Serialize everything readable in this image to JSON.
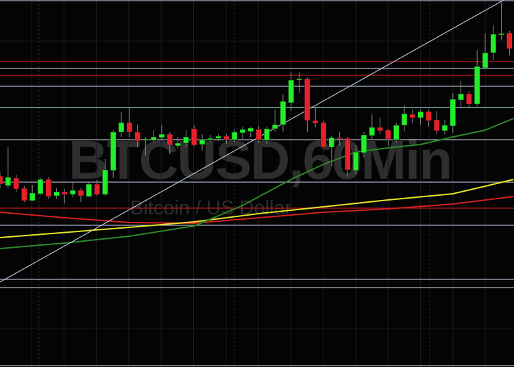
{
  "watermark": {
    "symbol": "BTCUSD,60Min",
    "name": "Bitcoin / US Dollar"
  },
  "colors": {
    "background": "#040404",
    "up": "#22ee2a",
    "down": "#e8202a",
    "level_light": "#a9b3c6",
    "level_cyan": "#8fd0d0",
    "level_red": "#b8181c",
    "trendline": "#b9c3d6",
    "ma_red": "#d42020",
    "ma_yellow": "#e7e22a",
    "ma_green": "#2d8a2a",
    "grid": "#1c1c1c"
  },
  "chart_data": {
    "type": "candlestick",
    "title": "",
    "xlabel": "",
    "ylabel": "",
    "note_scale": "relative price units (no axis printed)",
    "ylim": [
      0,
      536
    ],
    "grid": true,
    "candles": [
      [
        279,
        284,
        261,
        267
      ],
      [
        265,
        321,
        261,
        277
      ],
      [
        276,
        281,
        256,
        260
      ],
      [
        261,
        264,
        241,
        243
      ],
      [
        243,
        266,
        242,
        254
      ],
      [
        253,
        276,
        251,
        274
      ],
      [
        274,
        277,
        246,
        249
      ],
      [
        250,
        261,
        246,
        256
      ],
      [
        256,
        260,
        239,
        252
      ],
      [
        252,
        271,
        248,
        258
      ],
      [
        258,
        261,
        241,
        250
      ],
      [
        249,
        271,
        248,
        267
      ],
      [
        267,
        273,
        250,
        252
      ],
      [
        252,
        304,
        250,
        288
      ],
      [
        287,
        346,
        276,
        343
      ],
      [
        343,
        373,
        336,
        357
      ],
      [
        357,
        379,
        336,
        343
      ],
      [
        343,
        354,
        321,
        330
      ],
      [
        331,
        336,
        309,
        333
      ],
      [
        331,
        346,
        328,
        336
      ],
      [
        335,
        354,
        331,
        340
      ],
      [
        340,
        343,
        311,
        324
      ],
      [
        323,
        336,
        320,
        327
      ],
      [
        327,
        346,
        321,
        336
      ],
      [
        348,
        353,
        322,
        324
      ],
      [
        325,
        340,
        316,
        332
      ],
      [
        332,
        339,
        328,
        334
      ],
      [
        334,
        340,
        330,
        337
      ],
      [
        337,
        340,
        326,
        332
      ],
      [
        332,
        346,
        328,
        343
      ],
      [
        342,
        351,
        333,
        347
      ],
      [
        344,
        351,
        336,
        349
      ],
      [
        347,
        352,
        327,
        332
      ],
      [
        331,
        351,
        326,
        348
      ],
      [
        348,
        376,
        344,
        354
      ],
      [
        354,
        398,
        344,
        388
      ],
      [
        386,
        431,
        374,
        419
      ],
      [
        419,
        431,
        400,
        421
      ],
      [
        421,
        423,
        343,
        360
      ],
      [
        360,
        379,
        350,
        356
      ],
      [
        357,
        360,
        321,
        321
      ],
      [
        321,
        338,
        293,
        335
      ],
      [
        335,
        343,
        323,
        334
      ],
      [
        334,
        336,
        278,
        288
      ],
      [
        287,
        324,
        281,
        314
      ],
      [
        313,
        343,
        306,
        339
      ],
      [
        338,
        369,
        333,
        350
      ],
      [
        350,
        364,
        340,
        345
      ],
      [
        346,
        348,
        323,
        333
      ],
      [
        332,
        356,
        328,
        353
      ],
      [
        353,
        382,
        344,
        370
      ],
      [
        369,
        376,
        356,
        364
      ],
      [
        364,
        376,
        354,
        373
      ],
      [
        373,
        376,
        351,
        360
      ],
      [
        361,
        374,
        340,
        345
      ],
      [
        345,
        361,
        340,
        353
      ],
      [
        352,
        400,
        342,
        391
      ],
      [
        390,
        418,
        378,
        399
      ],
      [
        399,
        403,
        378,
        384
      ],
      [
        384,
        463,
        381,
        439
      ],
      [
        437,
        488,
        436,
        459
      ],
      [
        459,
        499,
        448,
        486
      ],
      [
        485,
        536,
        478,
        487
      ],
      [
        488,
        491,
        455,
        465
      ]
    ],
    "horizontal_levels": [
      {
        "value": 536,
        "style": "light"
      },
      {
        "value": 446,
        "style": "red"
      },
      {
        "value": 436,
        "style": "light"
      },
      {
        "value": 426,
        "style": "red"
      },
      {
        "value": 410,
        "style": "light"
      },
      {
        "value": 379,
        "style": "cyan"
      },
      {
        "value": 332,
        "style": "light"
      },
      {
        "value": 270,
        "style": "light"
      },
      {
        "value": 232,
        "style": "red"
      },
      {
        "value": 207,
        "style": "light"
      },
      {
        "value": 128,
        "style": "light"
      },
      {
        "value": 116,
        "style": "light"
      }
    ],
    "moving_averages": [
      {
        "color": "red",
        "points": [
          [
            0,
            226
          ],
          [
            8,
            218
          ],
          [
            16,
            211
          ],
          [
            24,
            210
          ],
          [
            32,
            218
          ],
          [
            40,
            226
          ],
          [
            48,
            231
          ],
          [
            56,
            238
          ],
          [
            63.5,
            249
          ]
        ]
      },
      {
        "color": "yellow",
        "points": [
          [
            0,
            189
          ],
          [
            16,
            204
          ],
          [
            24,
            212
          ],
          [
            32,
            224
          ],
          [
            40,
            234
          ],
          [
            48,
            244
          ],
          [
            56,
            253
          ],
          [
            60,
            264
          ],
          [
            63.5,
            274
          ]
        ]
      },
      {
        "color": "green",
        "points": [
          [
            0,
            173
          ],
          [
            8,
            181
          ],
          [
            16,
            191
          ],
          [
            24,
            206
          ],
          [
            30,
            236
          ],
          [
            36,
            274
          ],
          [
            40,
            296
          ],
          [
            44,
            314
          ],
          [
            48,
            320
          ],
          [
            52,
            325
          ],
          [
            56,
            336
          ],
          [
            60,
            346
          ],
          [
            63.5,
            363
          ]
        ]
      }
    ],
    "trendline": [
      [
        0,
        124
      ],
      [
        62.3,
        536
      ]
    ]
  }
}
